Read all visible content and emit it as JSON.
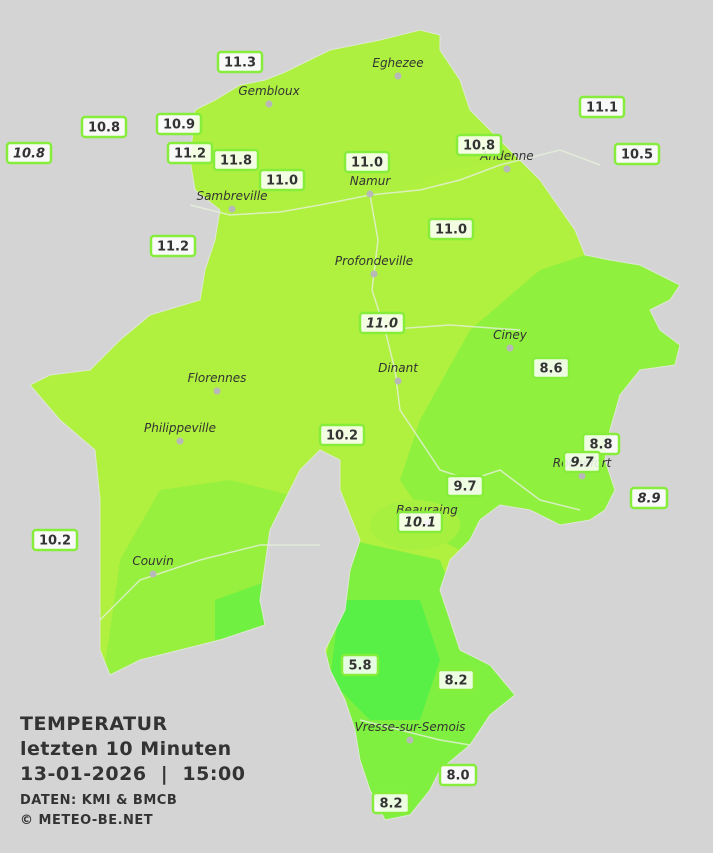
{
  "title": "TEMPERATUR",
  "subtitle": "letzten 10 Minuten",
  "datetime": "13-01-2026  |  15:00",
  "source": "DATEN: KMI & BMCB",
  "copyright": "© METEO-BE.NET",
  "cities": [
    "Eghezee",
    "Gembloux",
    "Andenne",
    "Namur",
    "Sambreville",
    "Profondeville",
    "Ciney",
    "Dinant",
    "Florennes",
    "Philippeville",
    "Couvin",
    "Beauraing",
    "Rochefort",
    "Vresse-sur-Semois"
  ],
  "stations": [
    "11.3",
    "10.8",
    "10.9",
    "10.8",
    "11.2",
    "11.8",
    "11.0",
    "11.0",
    "10.8",
    "11.1",
    "10.5",
    "11.0",
    "11.2",
    "11.0",
    "8.6",
    "10.2",
    "8.8",
    "9.7",
    "9.7",
    "8.9",
    "10.1",
    "10.2",
    "5.8",
    "8.2",
    "8.0",
    "8.2"
  ]
}
